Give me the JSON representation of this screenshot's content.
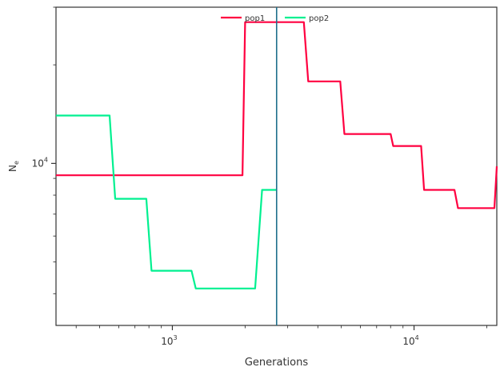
{
  "chart_data": {
    "type": "line",
    "title": "",
    "xlabel": "Generations",
    "ylabel": "N",
    "ylabel_subscript": "e",
    "xscale": "log",
    "yscale": "log",
    "xlim": [
      330,
      22000
    ],
    "ylim": [
      3200,
      30000
    ],
    "x_major_ticks": [
      {
        "value": 1000,
        "base": "10",
        "exp": "3"
      },
      {
        "value": 10000,
        "base": "10",
        "exp": "4"
      }
    ],
    "y_major_ticks": [
      {
        "value": 10000,
        "base": "10",
        "exp": "4"
      }
    ],
    "y_minor_ticks": [
      4000,
      5000,
      6000,
      7000,
      8000,
      9000,
      20000,
      30000
    ],
    "grid": false,
    "legend_position": "top-center",
    "vline": {
      "x": 2700,
      "color": "#1f6f8b"
    },
    "series": [
      {
        "name": "pop1",
        "color": "#ff0040",
        "points": [
          [
            330,
            9200
          ],
          [
            1950,
            9200
          ],
          [
            2000,
            27000
          ],
          [
            3500,
            27000
          ],
          [
            3650,
            17800
          ],
          [
            4950,
            17800
          ],
          [
            5150,
            12300
          ],
          [
            8000,
            12300
          ],
          [
            8200,
            11300
          ],
          [
            10700,
            11300
          ],
          [
            11000,
            8300
          ],
          [
            14700,
            8300
          ],
          [
            15200,
            7300
          ],
          [
            21500,
            7300
          ],
          [
            22000,
            9800
          ]
        ]
      },
      {
        "name": "pop2",
        "color": "#00f090",
        "points": [
          [
            330,
            14000
          ],
          [
            550,
            14000
          ],
          [
            580,
            7800
          ],
          [
            780,
            7800
          ],
          [
            820,
            4700
          ],
          [
            1200,
            4700
          ],
          [
            1250,
            4150
          ],
          [
            2200,
            4150
          ],
          [
            2350,
            8300
          ],
          [
            2700,
            8300
          ]
        ]
      }
    ]
  }
}
